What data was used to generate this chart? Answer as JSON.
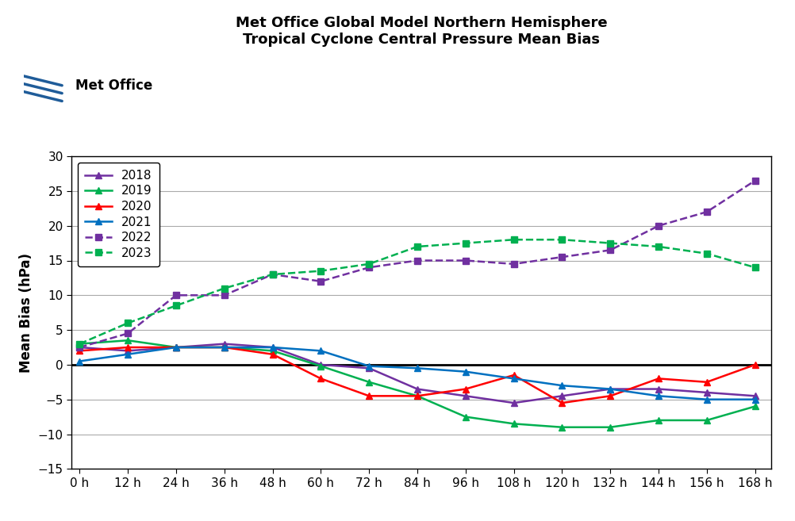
{
  "title_line1": "Met Office Global Model Northern Hemisphere",
  "title_line2": "Tropical Cyclone Central Pressure Mean Bias",
  "ylabel": "Mean Bias (hPa)",
  "x_labels": [
    "0 h",
    "12 h",
    "24 h",
    "36 h",
    "48 h",
    "60 h",
    "72 h",
    "84 h",
    "96 h",
    "108 h",
    "120 h",
    "132 h",
    "144 h",
    "156 h",
    "168 h"
  ],
  "x_values": [
    0,
    12,
    24,
    36,
    48,
    60,
    72,
    84,
    96,
    108,
    120,
    132,
    144,
    156,
    168
  ],
  "ylim": [
    -15,
    30
  ],
  "yticks": [
    -15,
    -10,
    -5,
    0,
    5,
    10,
    15,
    20,
    25,
    30
  ],
  "series": {
    "2018": {
      "color": "#7030A0",
      "dashed": false,
      "marker": "^",
      "values": [
        2.5,
        2.0,
        2.5,
        3.0,
        2.5,
        0.0,
        -0.5,
        -3.5,
        -4.5,
        -5.5,
        -4.5,
        -3.5,
        -3.5,
        -4.0,
        -4.5
      ]
    },
    "2019": {
      "color": "#00B050",
      "dashed": false,
      "marker": "^",
      "values": [
        3.0,
        3.5,
        2.5,
        2.5,
        2.0,
        -0.2,
        -2.5,
        -4.5,
        -7.5,
        -8.5,
        -9.0,
        -9.0,
        -8.0,
        -8.0,
        -6.0
      ]
    },
    "2020": {
      "color": "#FF0000",
      "dashed": false,
      "marker": "^",
      "values": [
        2.0,
        2.5,
        2.5,
        2.5,
        1.5,
        -2.0,
        -4.5,
        -4.5,
        -3.5,
        -1.5,
        -5.5,
        -4.5,
        -2.0,
        -2.5,
        0.0
      ]
    },
    "2021": {
      "color": "#0070C0",
      "dashed": false,
      "marker": "^",
      "values": [
        0.5,
        1.5,
        2.5,
        2.5,
        2.5,
        2.0,
        -0.2,
        -0.5,
        -1.0,
        -2.0,
        -3.0,
        -3.5,
        -4.5,
        -5.0,
        -5.0
      ]
    },
    "2022": {
      "color": "#7030A0",
      "dashed": true,
      "marker": "s",
      "values": [
        2.5,
        4.5,
        10.0,
        10.0,
        13.0,
        12.0,
        14.0,
        15.0,
        15.0,
        14.5,
        15.5,
        16.5,
        20.0,
        22.0,
        26.5
      ]
    },
    "2023": {
      "color": "#00B050",
      "dashed": true,
      "marker": "s",
      "values": [
        3.0,
        6.0,
        8.5,
        11.0,
        13.0,
        13.5,
        14.5,
        17.0,
        17.5,
        18.0,
        18.0,
        17.5,
        17.0,
        16.0,
        14.0
      ]
    }
  },
  "background_color": "#FFFFFF",
  "zero_line_color": "#000000",
  "logo_text": "Met Office",
  "logo_lines_color": "#1F5C99"
}
